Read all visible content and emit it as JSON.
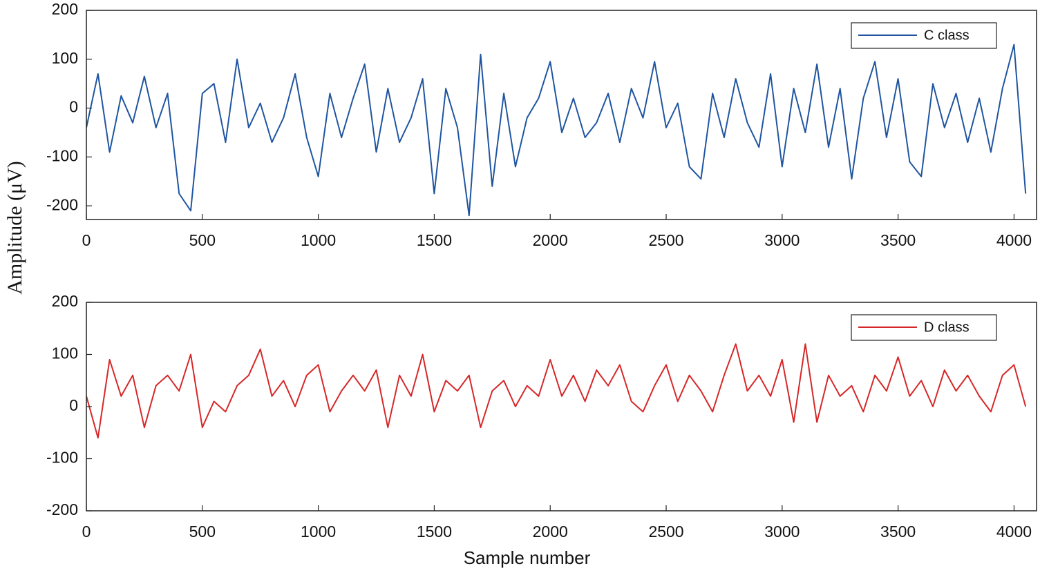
{
  "chart_data": [
    {
      "type": "line",
      "y_label": "Amplitude (μV)",
      "legend": "upper right",
      "x": [
        0,
        50,
        100,
        150,
        200,
        250,
        300,
        350,
        400,
        450,
        500,
        550,
        600,
        650,
        700,
        750,
        800,
        850,
        900,
        950,
        1000,
        1050,
        1100,
        1150,
        1200,
        1250,
        1300,
        1350,
        1400,
        1450,
        1500,
        1550,
        1600,
        1650,
        1700,
        1750,
        1800,
        1850,
        1900,
        1950,
        2000,
        2050,
        2100,
        2150,
        2200,
        2250,
        2300,
        2350,
        2400,
        2450,
        2500,
        2550,
        2600,
        2650,
        2700,
        2750,
        2800,
        2850,
        2900,
        2950,
        3000,
        3050,
        3100,
        3150,
        3200,
        3250,
        3300,
        3350,
        3400,
        3450,
        3500,
        3550,
        3600,
        3650,
        3700,
        3750,
        3800,
        3850,
        3900,
        3950,
        4000,
        4050
      ],
      "series": [
        {
          "name": "C class",
          "color": "#1f55a0",
          "values": [
            -40,
            70,
            -90,
            25,
            -30,
            65,
            -40,
            30,
            -175,
            -210,
            30,
            50,
            -70,
            100,
            -40,
            10,
            -70,
            -20,
            70,
            -60,
            -140,
            30,
            -60,
            20,
            90,
            -90,
            40,
            -70,
            -20,
            60,
            -175,
            40,
            -40,
            -220,
            110,
            -160,
            30,
            -120,
            -20,
            20,
            95,
            -50,
            20,
            -60,
            -30,
            30,
            -70,
            40,
            -20,
            95,
            -40,
            10,
            -120,
            -145,
            30,
            -60,
            60,
            -30,
            -80,
            70,
            -120,
            40,
            -50,
            90,
            -80,
            40,
            -145,
            20,
            95,
            -60,
            60,
            -110,
            -140,
            50,
            -40,
            30,
            -70,
            20,
            -90,
            40,
            130,
            -175
          ]
        }
      ],
      "xlim": [
        0,
        4097
      ],
      "ylim": [
        -228,
        200
      ],
      "xticks": [
        0,
        500,
        1000,
        1500,
        2000,
        2500,
        3000,
        3500,
        4000
      ],
      "yticks": [
        -200,
        -100,
        0,
        100,
        200
      ]
    },
    {
      "type": "line",
      "x_label": "Sample number",
      "legend": "upper right",
      "x": [
        0,
        50,
        100,
        150,
        200,
        250,
        300,
        350,
        400,
        450,
        500,
        550,
        600,
        650,
        700,
        750,
        800,
        850,
        900,
        950,
        1000,
        1050,
        1100,
        1150,
        1200,
        1250,
        1300,
        1350,
        1400,
        1450,
        1500,
        1550,
        1600,
        1650,
        1700,
        1750,
        1800,
        1850,
        1900,
        1950,
        2000,
        2050,
        2100,
        2150,
        2200,
        2250,
        2300,
        2350,
        2400,
        2450,
        2500,
        2550,
        2600,
        2650,
        2700,
        2750,
        2800,
        2850,
        2900,
        2950,
        3000,
        3050,
        3100,
        3150,
        3200,
        3250,
        3300,
        3350,
        3400,
        3450,
        3500,
        3550,
        3600,
        3650,
        3700,
        3750,
        3800,
        3850,
        3900,
        3950,
        4000,
        4050
      ],
      "series": [
        {
          "name": "D class",
          "color": "#d62728",
          "values": [
            20,
            -60,
            90,
            20,
            60,
            -40,
            40,
            60,
            30,
            100,
            -40,
            10,
            -10,
            40,
            60,
            110,
            20,
            50,
            0,
            60,
            80,
            -10,
            30,
            60,
            30,
            70,
            -40,
            60,
            20,
            100,
            -10,
            50,
            30,
            60,
            -40,
            30,
            50,
            0,
            40,
            20,
            90,
            20,
            60,
            10,
            70,
            40,
            80,
            10,
            -10,
            40,
            80,
            10,
            60,
            30,
            -10,
            60,
            120,
            30,
            60,
            20,
            90,
            -30,
            120,
            -30,
            60,
            20,
            40,
            -10,
            60,
            30,
            95,
            20,
            50,
            0,
            70,
            30,
            60,
            20,
            -10,
            60,
            80,
            0
          ]
        }
      ],
      "xlim": [
        0,
        4097
      ],
      "ylim": [
        -200,
        200
      ],
      "xticks": [
        0,
        500,
        1000,
        1500,
        2000,
        2500,
        3000,
        3500,
        4000
      ],
      "yticks": [
        -200,
        -100,
        0,
        100,
        200
      ]
    }
  ]
}
